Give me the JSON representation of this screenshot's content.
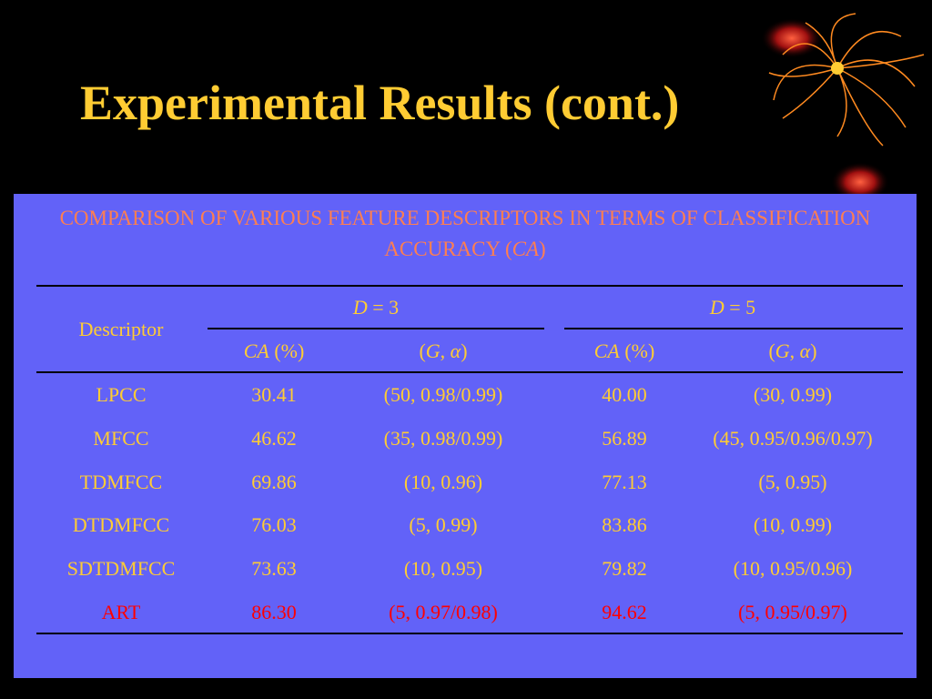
{
  "header": {
    "title": "Experimental Results (cont.)"
  },
  "table": {
    "caption": [
      "COMPARISON OF VARIOUS FEATURE DESCRIPTORS IN TERMS OF CLASSIFICATION ACCURACY (",
      {
        "text": "CA",
        "italic": true
      },
      ")"
    ],
    "text_color": "#ffcc33",
    "caption_color": "#ff7f50",
    "header_top": {
      "descriptor": [
        "Descriptor"
      ],
      "groups": [
        [
          {
            "text": "D",
            "italic": true
          },
          " = 3"
        ],
        [
          {
            "text": "D",
            "italic": true
          },
          " = 5"
        ]
      ]
    },
    "header_sub": [
      [
        {
          "text": "CA",
          "italic": true
        },
        " (%)"
      ],
      [
        "(",
        {
          "text": "G",
          "italic": true
        },
        ", ",
        {
          "text": "α",
          "italic": true
        },
        ")"
      ],
      [
        {
          "text": "CA",
          "italic": true
        },
        " (%)"
      ],
      [
        "(",
        {
          "text": "G",
          "italic": true
        },
        ", ",
        {
          "text": "α",
          "italic": true
        },
        ")"
      ]
    ],
    "rows": [
      {
        "cells": [
          "LPCC",
          "30.41",
          "(50, 0.98/0.99)",
          "40.00",
          "(30, 0.99)"
        ]
      },
      {
        "cells": [
          "MFCC",
          "46.62",
          "(35, 0.98/0.99)",
          "56.89",
          "(45, 0.95/0.96/0.97)"
        ]
      },
      {
        "cells": [
          "TDMFCC",
          "69.86",
          "(10, 0.96)",
          "77.13",
          "(5, 0.95)"
        ]
      },
      {
        "cells": [
          "DTDMFCC",
          "76.03",
          "(5, 0.99)",
          "83.86",
          "(10, 0.99)"
        ]
      },
      {
        "cells": [
          "SDTDMFCC",
          "73.63",
          "(10, 0.95)",
          "79.82",
          "(10, 0.95/0.96)"
        ]
      },
      {
        "cells": [
          "ART",
          "86.30",
          "(5, 0.97/0.98)",
          "94.62",
          "(5, 0.95/0.97)"
        ],
        "color": "#ff0000"
      }
    ]
  }
}
